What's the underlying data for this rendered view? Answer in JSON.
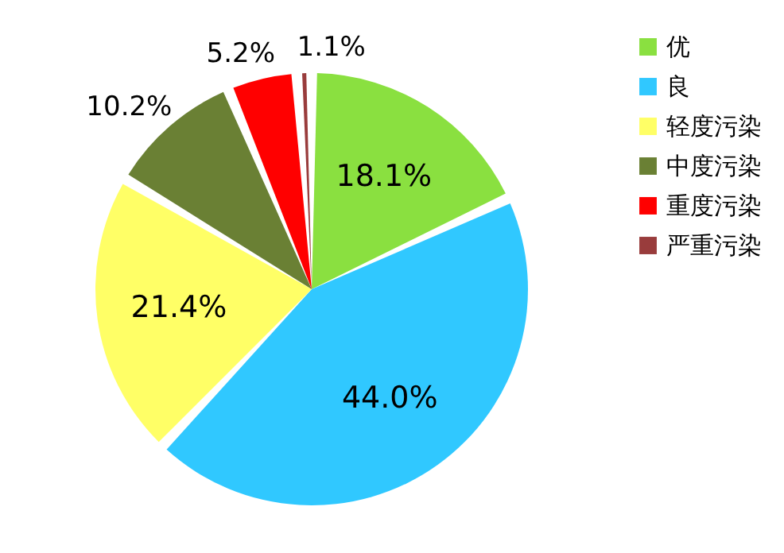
{
  "chart_data": {
    "type": "pie",
    "categories": [
      "优",
      "良",
      "轻度污染",
      "中度污染",
      "重度污染",
      "严重污染"
    ],
    "values": [
      18.1,
      44.0,
      21.4,
      10.2,
      5.2,
      1.1
    ],
    "value_labels": [
      "18.1%",
      "44.0%",
      "21.4%",
      "10.2%",
      "5.2%",
      "1.1%"
    ],
    "colors": [
      "#8ae040",
      "#30c8ff",
      "#ffff66",
      "#6a8034",
      "#ff0000",
      "#993c3c"
    ],
    "legend": "right"
  }
}
